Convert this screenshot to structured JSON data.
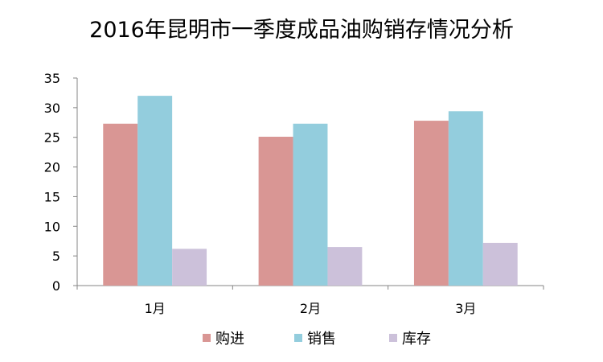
{
  "chart_data": {
    "type": "bar",
    "title": "2016年昆明市一季度成品油购销存情况分析",
    "xlabel": "",
    "ylabel": "",
    "categories": [
      "1月",
      "2月",
      "3月"
    ],
    "ylim": [
      0,
      35
    ],
    "yticks": [
      0,
      5,
      10,
      15,
      20,
      25,
      30,
      35
    ],
    "grid": false,
    "legend_position": "bottom",
    "series": [
      {
        "name": "购进",
        "color": "#D99694",
        "values": [
          27.3,
          25.1,
          27.8
        ]
      },
      {
        "name": "销售",
        "color": "#93CDDD",
        "values": [
          32.0,
          27.3,
          29.4
        ]
      },
      {
        "name": "库存",
        "color": "#CCC1DA",
        "values": [
          6.2,
          6.5,
          7.2
        ]
      }
    ]
  }
}
